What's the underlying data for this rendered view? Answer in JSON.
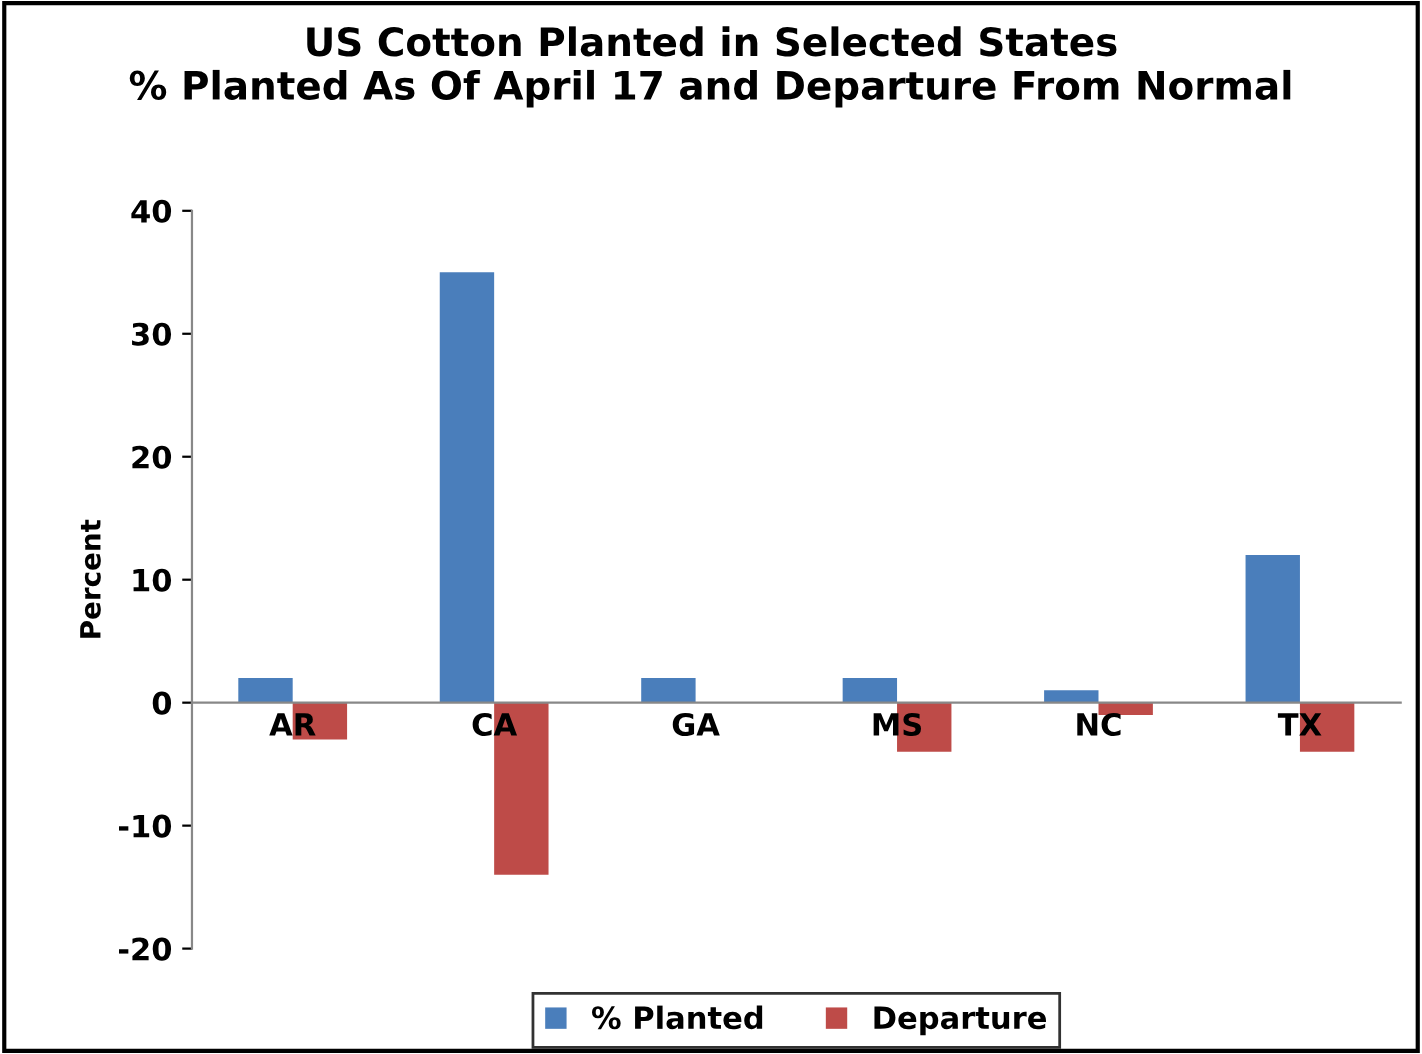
{
  "chart_data": {
    "type": "bar",
    "title": "US Cotton Planted in Selected States\n% Planted As Of April 17 and Departure From Normal",
    "ylabel": "Percent",
    "categories": [
      "AR",
      "CA",
      "GA",
      "MS",
      "NC",
      "TX"
    ],
    "series": [
      {
        "name": "% Planted",
        "color": "#4a7ebb",
        "values": [
          2,
          35,
          2,
          2,
          1,
          12
        ]
      },
      {
        "name": "Departure",
        "color": "#be4b48",
        "values": [
          -3,
          -14,
          0,
          -4,
          -1,
          -4
        ]
      }
    ],
    "ylim": [
      -20,
      40
    ],
    "yticks": [
      -20,
      -10,
      0,
      10,
      20,
      30,
      40
    ],
    "grid": false,
    "legend": "bottom"
  }
}
